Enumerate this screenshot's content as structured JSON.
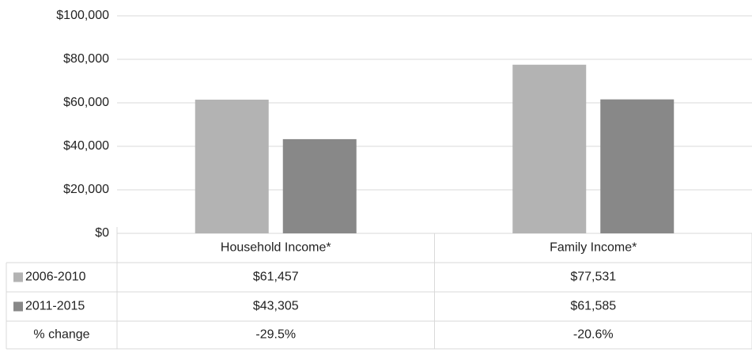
{
  "chart_data": {
    "type": "bar",
    "categories": [
      "Household Income*",
      "Family Income*"
    ],
    "series": [
      {
        "name": "2006-2010",
        "color": "#b3b3b3",
        "values": [
          61457,
          77531
        ],
        "value_labels": [
          "$61,457",
          "$77,531"
        ]
      },
      {
        "name": "2011-2015",
        "color": "#888888",
        "values": [
          43305,
          61585
        ],
        "value_labels": [
          "$43,305",
          "$61,585"
        ]
      }
    ],
    "pct_change": {
      "label": "% change",
      "values": [
        -29.5,
        -20.6
      ],
      "value_labels": [
        "-29.5%",
        "-20.6%"
      ]
    },
    "ylim": [
      0,
      100000
    ],
    "yticks": [
      {
        "value": 0,
        "label": "$0"
      },
      {
        "value": 20000,
        "label": "$20,000"
      },
      {
        "value": 40000,
        "label": "$40,000"
      },
      {
        "value": 60000,
        "label": "$60,000"
      },
      {
        "value": 80000,
        "label": "$80,000"
      },
      {
        "value": 100000,
        "label": "$100,000"
      }
    ],
    "grid": true
  }
}
